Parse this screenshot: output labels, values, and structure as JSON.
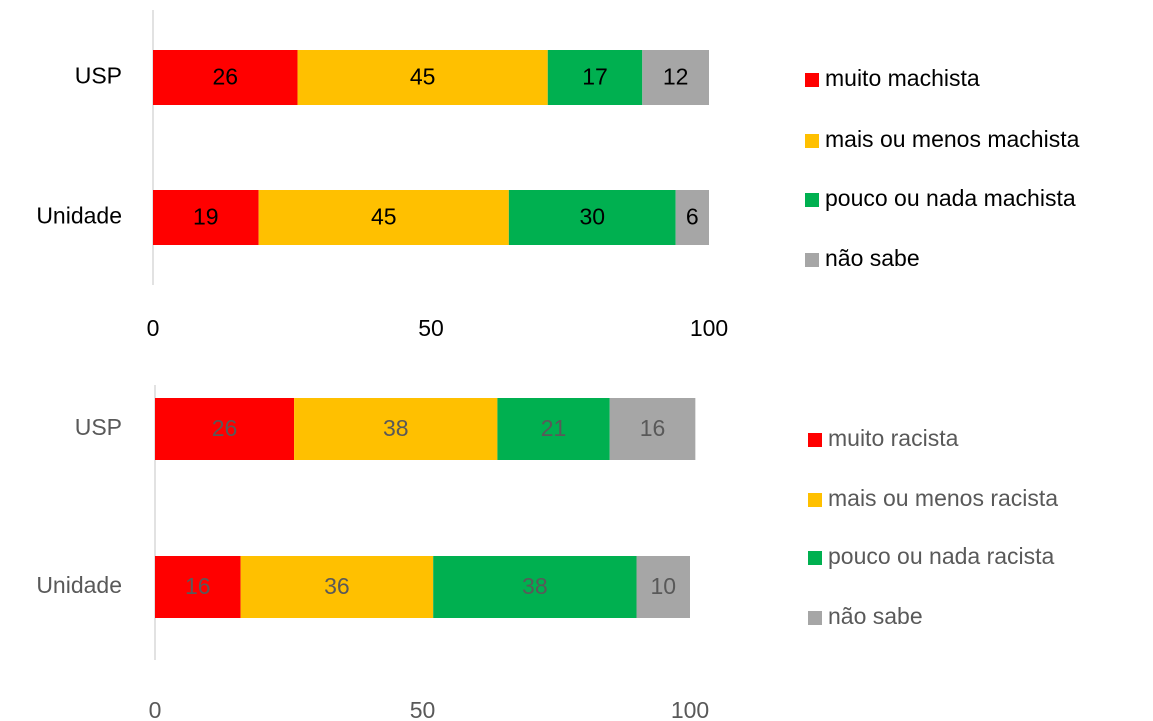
{
  "chart_data": [
    {
      "type": "bar",
      "orientation": "horizontal",
      "stacked": true,
      "categories": [
        "USP",
        "Unidade"
      ],
      "series": [
        {
          "name": "muito machista",
          "color": "#ff0000",
          "values": [
            26,
            19
          ]
        },
        {
          "name": "mais ou menos machista",
          "color": "#ffc000",
          "values": [
            45,
            45
          ]
        },
        {
          "name": "pouco ou nada machista",
          "color": "#00b050",
          "values": [
            17,
            30
          ]
        },
        {
          "name": "não sabe",
          "color": "#a6a6a6",
          "values": [
            12,
            6
          ]
        }
      ],
      "xlim": [
        0,
        100
      ],
      "xticks": [
        0,
        50,
        100
      ],
      "legend": "right"
    },
    {
      "type": "bar",
      "orientation": "horizontal",
      "stacked": true,
      "categories": [
        "USP",
        "Unidade"
      ],
      "series": [
        {
          "name": "muito racista",
          "color": "#ff0000",
          "values": [
            26,
            16
          ]
        },
        {
          "name": "mais ou menos racista",
          "color": "#ffc000",
          "values": [
            38,
            36
          ]
        },
        {
          "name": "pouco ou nada racista",
          "color": "#00b050",
          "values": [
            21,
            38
          ]
        },
        {
          "name": "não sabe",
          "color": "#a6a6a6",
          "values": [
            16,
            10
          ]
        }
      ],
      "xlim": [
        0,
        100
      ],
      "xticks": [
        0,
        50,
        100
      ],
      "legend": "right"
    }
  ]
}
